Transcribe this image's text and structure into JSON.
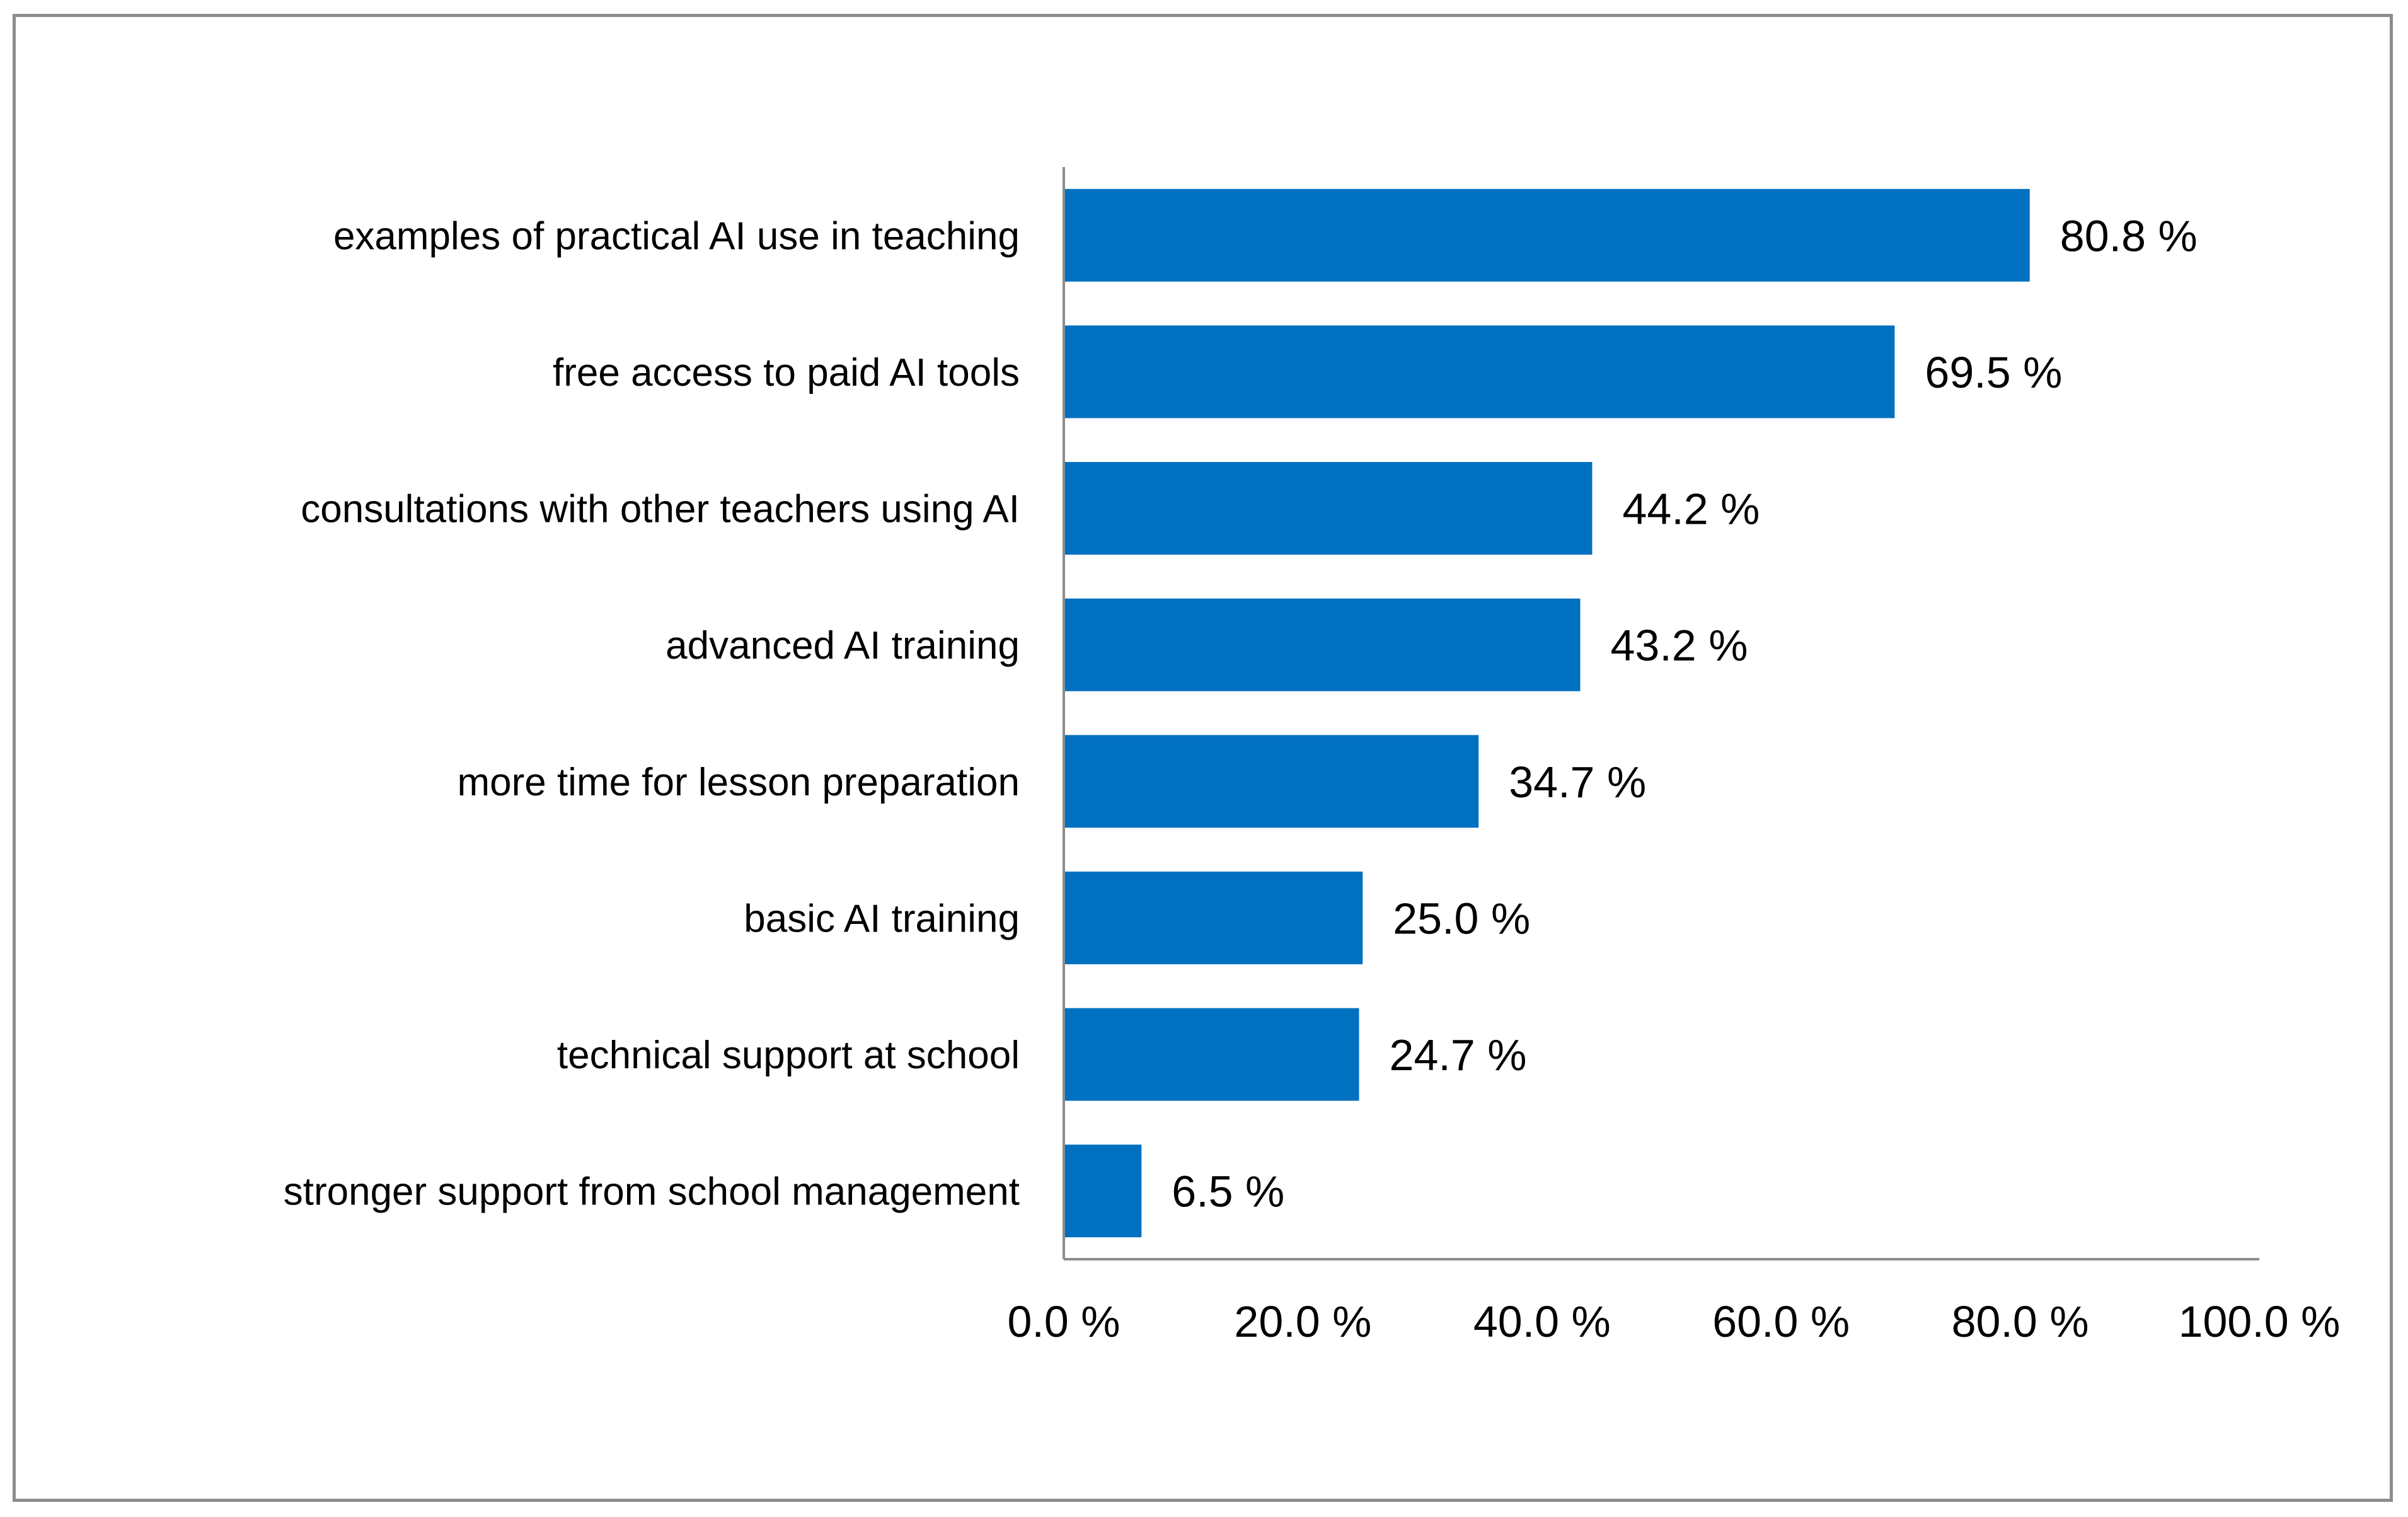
{
  "chart_data": {
    "type": "bar",
    "orientation": "horizontal",
    "title": "",
    "xlabel": "",
    "ylabel": "",
    "categories": [
      "examples of practical AI use in teaching",
      "free access to paid AI tools",
      "consultations with other teachers using AI",
      "advanced AI training",
      "more time for lesson preparation",
      "basic AI training",
      "technical support at school",
      "stronger support from school management"
    ],
    "values": [
      80.8,
      69.5,
      44.2,
      43.2,
      34.7,
      25.0,
      24.7,
      6.5
    ],
    "value_labels": [
      "80.8 %",
      "69.5 %",
      "44.2 %",
      "43.2 %",
      "34.7 %",
      "25.0 %",
      "24.7 %",
      "6.5 %"
    ],
    "xlim": [
      0,
      100
    ],
    "x_ticks": [
      0,
      20,
      40,
      60,
      80,
      100
    ],
    "x_tick_labels": [
      "0.0 %",
      "20.0 %",
      "40.0 %",
      "60.0 %",
      "80.0 %",
      "100.0 %"
    ],
    "grid": false,
    "legend": "none",
    "bar_color": "#0070C0",
    "axis_color": "#8c8c8c"
  }
}
